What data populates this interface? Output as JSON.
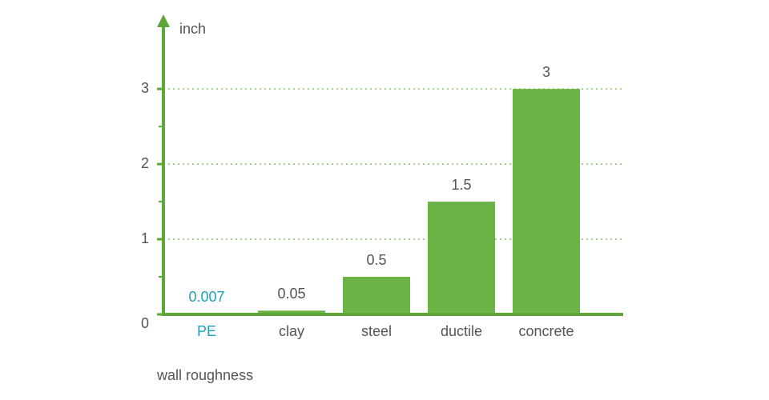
{
  "chart_data": {
    "type": "bar",
    "y_label": "inch",
    "x_label": "wall roughness",
    "categories": [
      "PE",
      "clay",
      "steel",
      "ductile",
      "concrete"
    ],
    "values": [
      0.007,
      0.05,
      0.5,
      1.5,
      3
    ],
    "label_colors": [
      "#1f9fb9",
      "#555555",
      "#555555",
      "#555555",
      "#555555"
    ],
    "color": "#6ab344",
    "axis_color": "#5ea639",
    "grid_color": "#8cc063",
    "ylim": [
      0,
      3.8
    ],
    "yticks": [
      0,
      1,
      2,
      3
    ],
    "minor_yticks": [
      0.5,
      1.5,
      2.5
    ],
    "grid": true
  }
}
